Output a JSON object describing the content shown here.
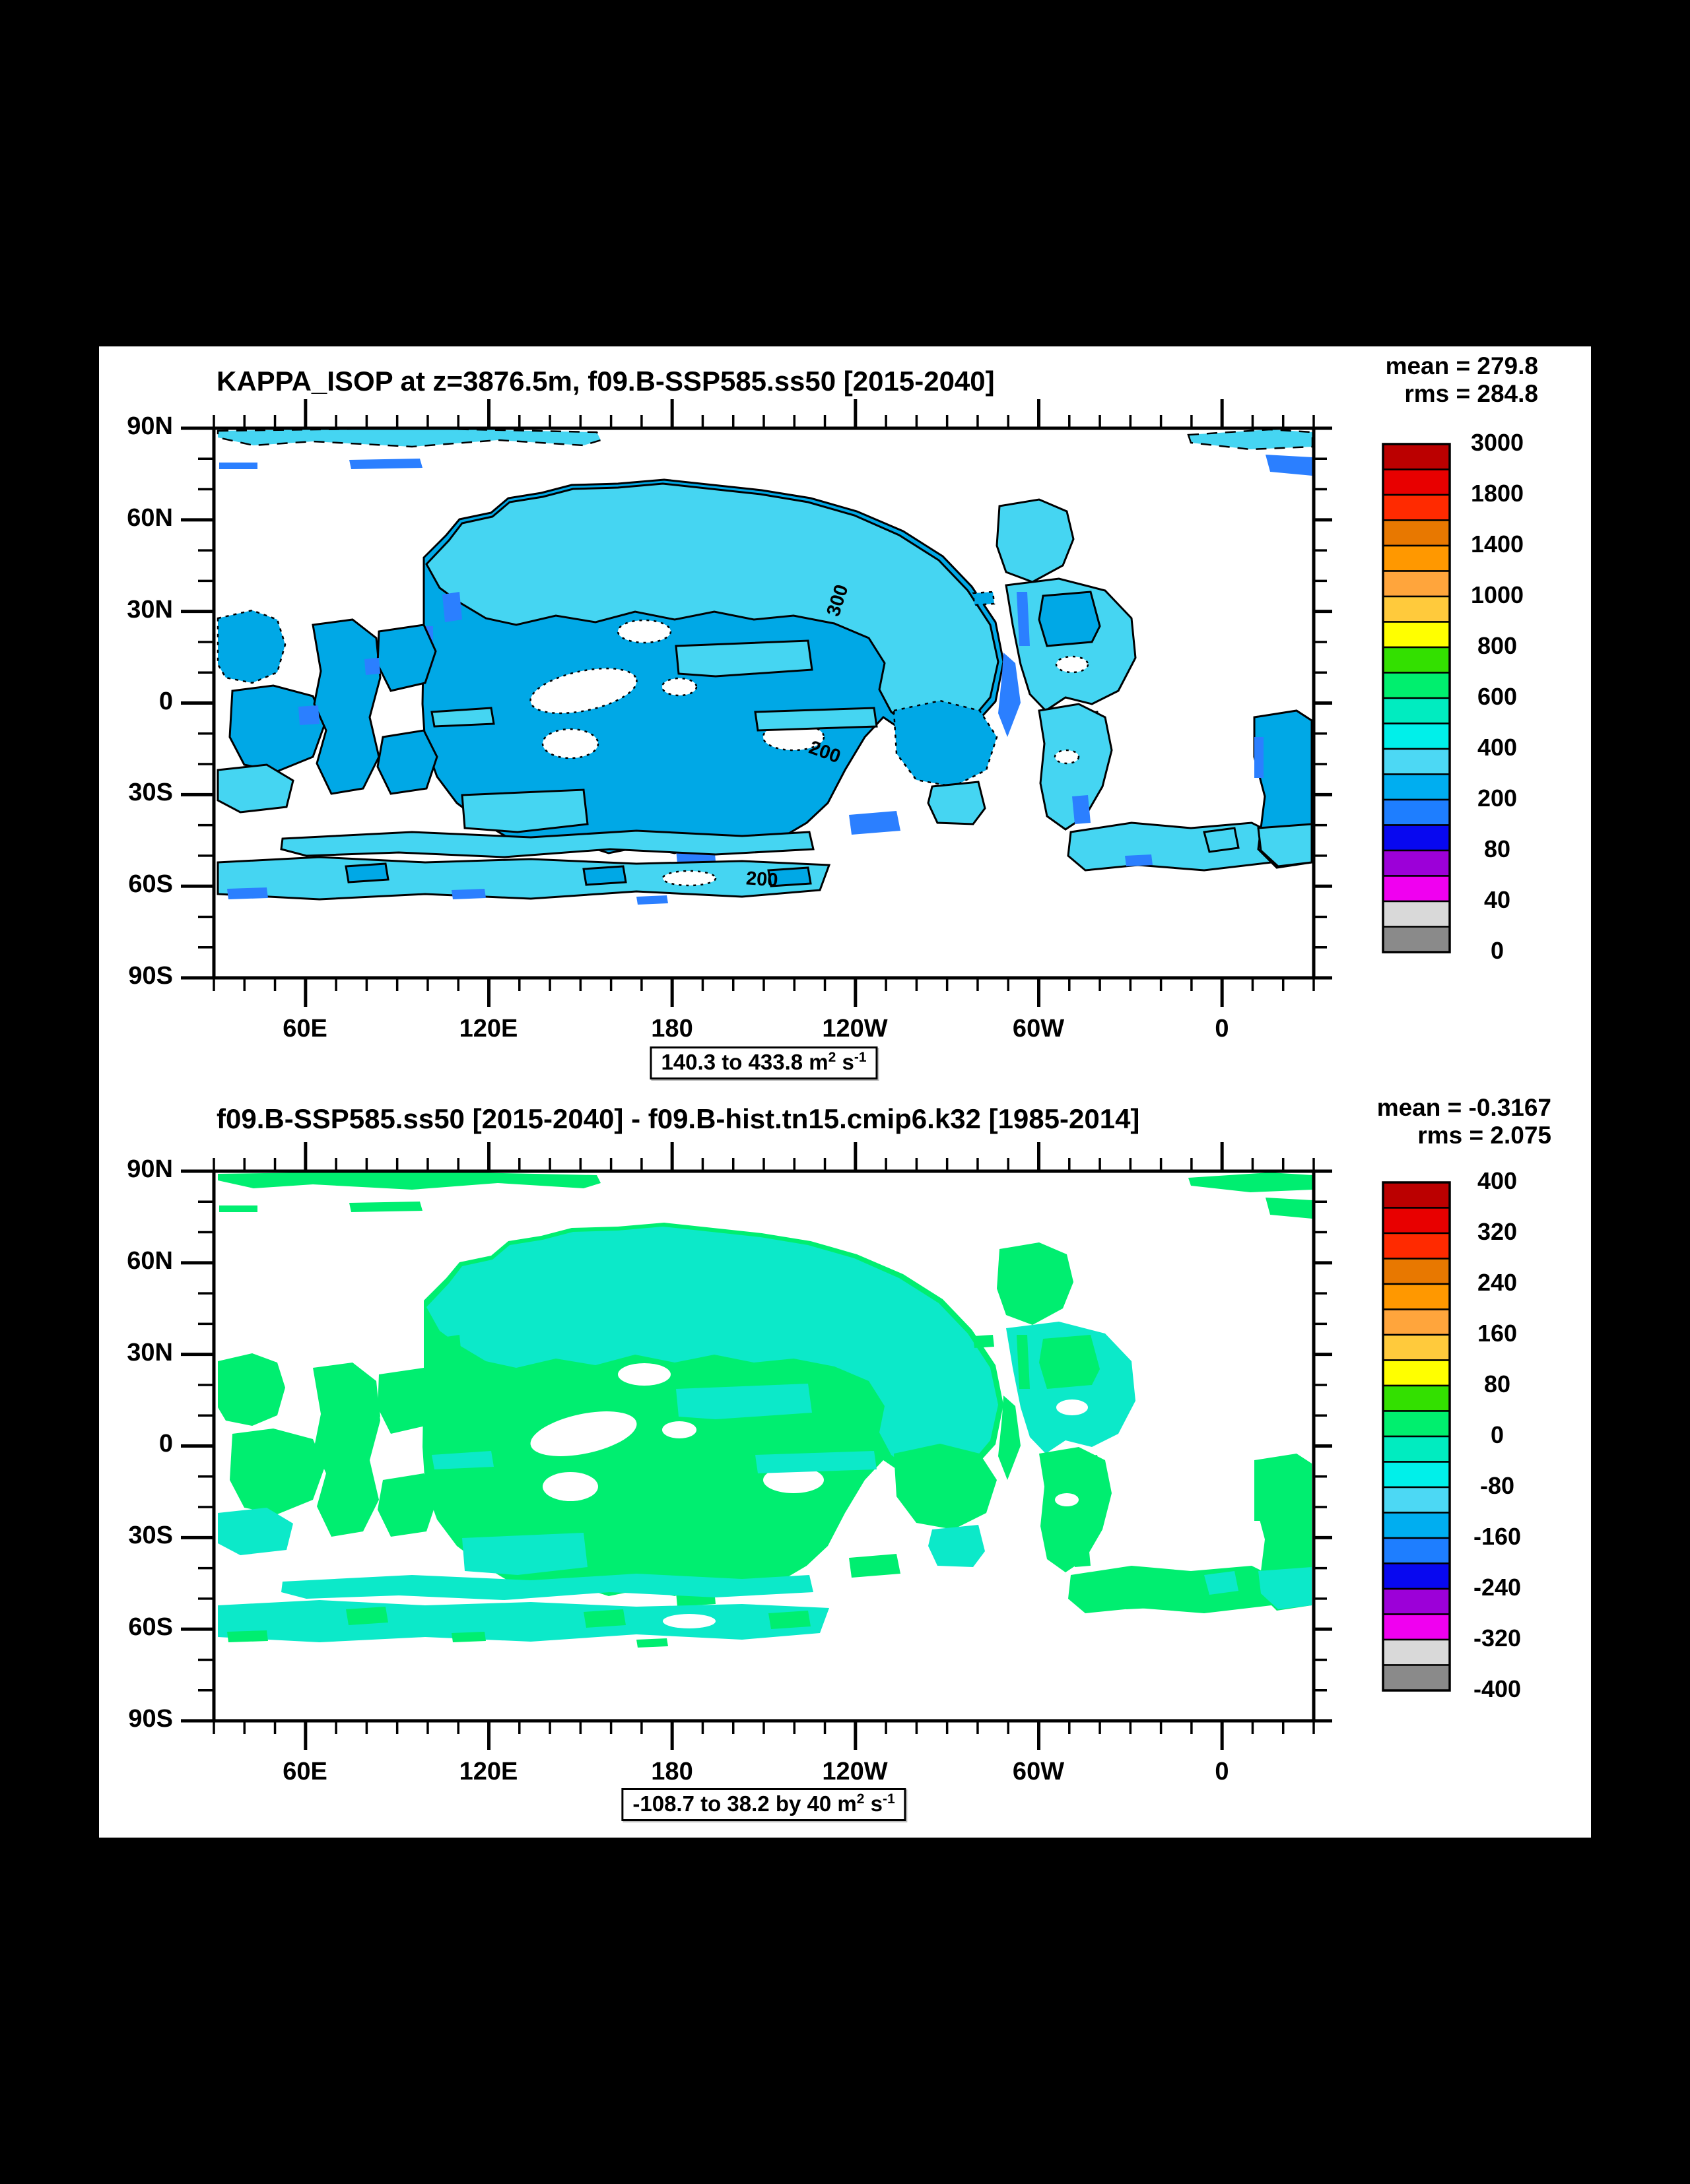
{
  "page": {
    "background": "#000000",
    "panel_background": "#ffffff"
  },
  "axes": {
    "lat": [
      "90N",
      "60N",
      "30N",
      "0",
      "30S",
      "60S",
      "90S"
    ],
    "lon": [
      "60E",
      "120E",
      "180",
      "120W",
      "60W",
      "0"
    ]
  },
  "palette_top_to_bottom": [
    "#bb0000",
    "#e80000",
    "#ff2a00",
    "#e87800",
    "#ff9800",
    "#ffa53c",
    "#ffca3c",
    "#ffff00",
    "#33e000",
    "#00ef6e",
    "#00ecc0",
    "#00f0ea",
    "#4cd8f4",
    "#00aef0",
    "#1e7eff",
    "#0808f0",
    "#9c00d8",
    "#f000f0",
    "#d9d9d9",
    "#8a8a8a"
  ],
  "map_colors": {
    "top_light_cyan": "#45d5f2",
    "top_sky_blue": "#00a8e6",
    "top_dodger_blue": "#2b7fff",
    "bottom_spring_green": "#00ee70",
    "bottom_turquoise": "#0ce9c9",
    "contour": "#000000"
  },
  "panels": [
    {
      "title": "KAPPA_ISOP at z=3876.5m, f09.B-SSP585.ss50 [2015-2040]",
      "mean_label": "mean = 279.8",
      "rms_label": "rms = 284.8",
      "caption": {
        "a": "140.3 to 433.8 m",
        "sup_a": "2",
        "b": " s",
        "sup_b": "-1"
      },
      "colorbar_labels": [
        "3000",
        "1800",
        "1400",
        "1000",
        "800",
        "600",
        "400",
        "200",
        "80",
        "40",
        "0"
      ],
      "contour_labels": [
        "300",
        "200",
        "200"
      ]
    },
    {
      "title": "f09.B-SSP585.ss50 [2015-2040] - f09.B-hist.tn15.cmip6.k32 [1985-2014]",
      "mean_label": "mean = -0.3167",
      "rms_label": "rms = 2.075",
      "caption": {
        "a": "-108.7 to 38.2 by 40 m",
        "sup_a": "2",
        "b": " s",
        "sup_b": "-1"
      },
      "colorbar_labels": [
        "400",
        "320",
        "240",
        "160",
        "80",
        "0",
        "-80",
        "-160",
        "-240",
        "-320",
        "-400"
      ]
    }
  ],
  "chart_data": [
    {
      "type": "heatmap",
      "title": "KAPPA_ISOP at z=3876.5m, f09.B-SSP585.ss50 [2015-2040]",
      "stats": {
        "mean": 279.8,
        "rms": 284.8
      },
      "data_range": {
        "min": 140.3,
        "max": 433.8,
        "units": "m2 s-1"
      },
      "colorbar_labeled_levels": [
        0,
        40,
        80,
        200,
        400,
        600,
        800,
        1000,
        1400,
        1800,
        3000
      ],
      "colorbar_colors_top_to_bottom": [
        "#bb0000",
        "#e80000",
        "#ff2a00",
        "#e87800",
        "#ff9800",
        "#ffa53c",
        "#ffca3c",
        "#ffff00",
        "#33e000",
        "#00ef6e",
        "#00ecc0",
        "#00f0ea",
        "#4cd8f4",
        "#00aef0",
        "#1e7eff",
        "#0808f0",
        "#9c00d8",
        "#f000f0",
        "#d9d9d9",
        "#8a8a8a"
      ],
      "contour_line_labels": [
        300,
        200
      ],
      "xlabel_ticks": [
        "60E",
        "120E",
        "180",
        "120W",
        "60W",
        "0"
      ],
      "ylabel_ticks": [
        "90N",
        "60N",
        "30N",
        "0",
        "30S",
        "60S",
        "90S"
      ],
      "legend_position": "right",
      "note": "Filled deep-ocean basins shown in light cyan (300-400), sky blue (200-300) and dodger blue fringes (100-200) with black 200/300 contour lines; land/shallow regions white."
    },
    {
      "type": "heatmap",
      "title": "f09.B-SSP585.ss50 [2015-2040] - f09.B-hist.tn15.cmip6.k32 [1985-2014]",
      "stats": {
        "mean": -0.3167,
        "rms": 2.075
      },
      "data_range": {
        "min": -108.7,
        "max": 38.2,
        "step": 40,
        "units": "m2 s-1"
      },
      "colorbar_labeled_levels": [
        -400,
        -320,
        -240,
        -160,
        -80,
        0,
        80,
        160,
        240,
        320,
        400
      ],
      "colorbar_colors_top_to_bottom": [
        "#bb0000",
        "#e80000",
        "#ff2a00",
        "#e87800",
        "#ff9800",
        "#ffa53c",
        "#ffca3c",
        "#ffff00",
        "#33e000",
        "#00ef6e",
        "#00ecc0",
        "#00f0ea",
        "#4cd8f4",
        "#00aef0",
        "#1e7eff",
        "#0808f0",
        "#9c00d8",
        "#f000f0",
        "#d9d9d9",
        "#8a8a8a"
      ],
      "xlabel_ticks": [
        "60E",
        "120E",
        "180",
        "120W",
        "60W",
        "0"
      ],
      "ylabel_ticks": [
        "90N",
        "60N",
        "30N",
        "0",
        "30S",
        "60S",
        "90S"
      ],
      "legend_position": "right",
      "note": "Difference map: spring green (0 to 40) and turquoise (-40 to 0) mottled fill over same ocean basins; no contour lines."
    }
  ]
}
